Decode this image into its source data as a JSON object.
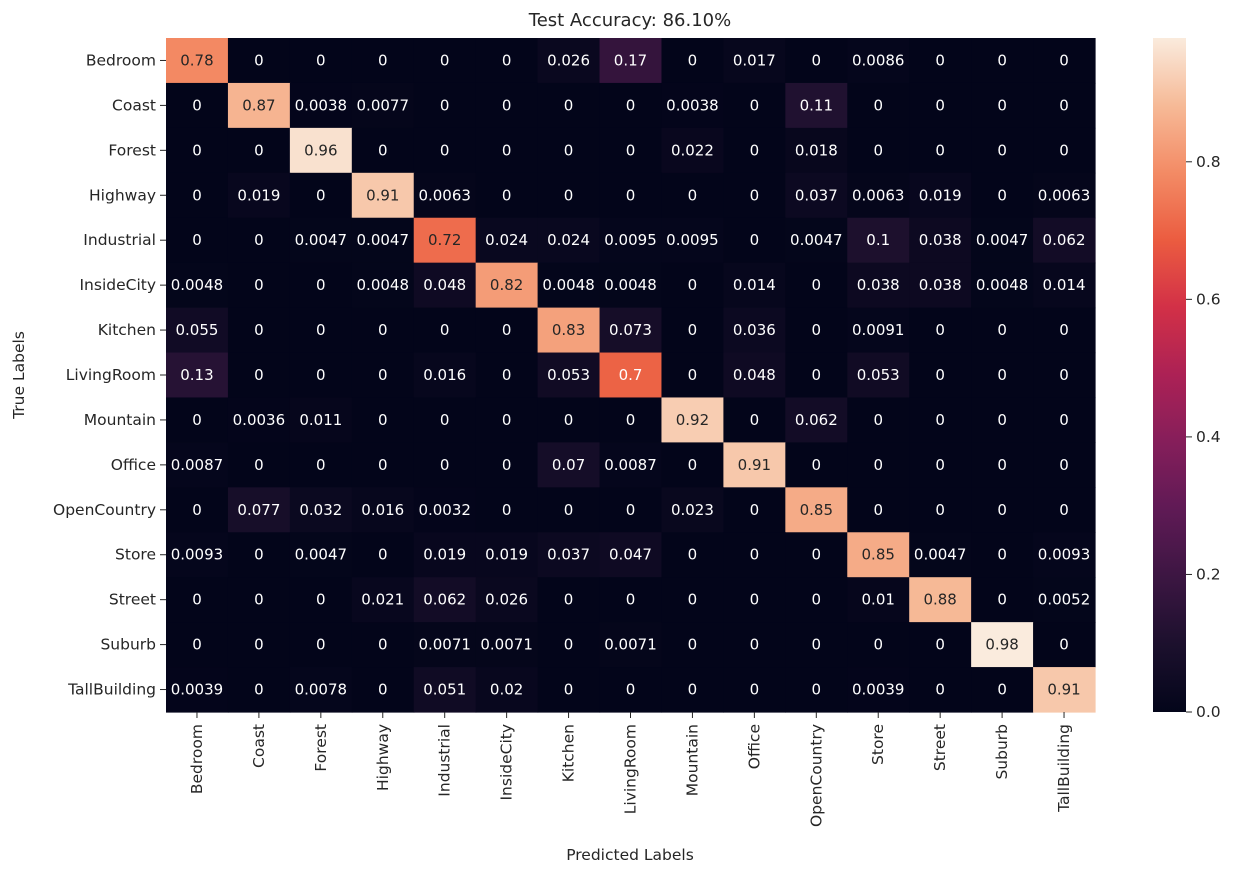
{
  "chart_data": {
    "type": "heatmap",
    "title": "Test Accuracy: 86.10%",
    "xlabel": "Predicted Labels",
    "ylabel": "True Labels",
    "x_categories": [
      "Bedroom",
      "Coast",
      "Forest",
      "Highway",
      "Industrial",
      "InsideCity",
      "Kitchen",
      "LivingRoom",
      "Mountain",
      "Office",
      "OpenCountry",
      "Store",
      "Street",
      "Suburb",
      "TallBuilding"
    ],
    "y_categories": [
      "Bedroom",
      "Coast",
      "Forest",
      "Highway",
      "Industrial",
      "InsideCity",
      "Kitchen",
      "LivingRoom",
      "Mountain",
      "Office",
      "OpenCountry",
      "Store",
      "Street",
      "Suburb",
      "TallBuilding"
    ],
    "values": [
      [
        "0.78",
        "0",
        "0",
        "0",
        "0",
        "0",
        "0.026",
        "0.17",
        "0",
        "0.017",
        "0",
        "0.0086",
        "0",
        "0",
        "0"
      ],
      [
        "0",
        "0.87",
        "0.0038",
        "0.0077",
        "0",
        "0",
        "0",
        "0",
        "0.0038",
        "0",
        "0.11",
        "0",
        "0",
        "0",
        "0"
      ],
      [
        "0",
        "0",
        "0.96",
        "0",
        "0",
        "0",
        "0",
        "0",
        "0.022",
        "0",
        "0.018",
        "0",
        "0",
        "0",
        "0"
      ],
      [
        "0",
        "0.019",
        "0",
        "0.91",
        "0.0063",
        "0",
        "0",
        "0",
        "0",
        "0",
        "0.037",
        "0.0063",
        "0.019",
        "0",
        "0.0063"
      ],
      [
        "0",
        "0",
        "0.0047",
        "0.0047",
        "0.72",
        "0.024",
        "0.024",
        "0.0095",
        "0.0095",
        "0",
        "0.0047",
        "0.1",
        "0.038",
        "0.0047",
        "0.062"
      ],
      [
        "0.0048",
        "0",
        "0",
        "0.0048",
        "0.048",
        "0.82",
        "0.0048",
        "0.0048",
        "0",
        "0.014",
        "0",
        "0.038",
        "0.038",
        "0.0048",
        "0.014"
      ],
      [
        "0.055",
        "0",
        "0",
        "0",
        "0",
        "0",
        "0.83",
        "0.073",
        "0",
        "0.036",
        "0",
        "0.0091",
        "0",
        "0",
        "0"
      ],
      [
        "0.13",
        "0",
        "0",
        "0",
        "0.016",
        "0",
        "0.053",
        "0.7",
        "0",
        "0.048",
        "0",
        "0.053",
        "0",
        "0",
        "0"
      ],
      [
        "0",
        "0.0036",
        "0.011",
        "0",
        "0",
        "0",
        "0",
        "0",
        "0.92",
        "0",
        "0.062",
        "0",
        "0",
        "0",
        "0"
      ],
      [
        "0.0087",
        "0",
        "0",
        "0",
        "0",
        "0",
        "0.07",
        "0.0087",
        "0",
        "0.91",
        "0",
        "0",
        "0",
        "0",
        "0"
      ],
      [
        "0",
        "0.077",
        "0.032",
        "0.016",
        "0.0032",
        "0",
        "0",
        "0",
        "0.023",
        "0",
        "0.85",
        "0",
        "0",
        "0",
        "0"
      ],
      [
        "0.0093",
        "0",
        "0.0047",
        "0",
        "0.019",
        "0.019",
        "0.037",
        "0.047",
        "0",
        "0",
        "0",
        "0.85",
        "0.0047",
        "0",
        "0.0093"
      ],
      [
        "0",
        "0",
        "0",
        "0.021",
        "0.062",
        "0.026",
        "0",
        "0",
        "0",
        "0",
        "0",
        "0.01",
        "0.88",
        "0",
        "0.0052"
      ],
      [
        "0",
        "0",
        "0",
        "0",
        "0.0071",
        "0.0071",
        "0",
        "0.0071",
        "0",
        "0",
        "0",
        "0",
        "0",
        "0.98",
        "0"
      ],
      [
        "0.0039",
        "0",
        "0.0078",
        "0",
        "0.051",
        "0.02",
        "0",
        "0",
        "0",
        "0",
        "0",
        "0.0039",
        "0",
        "0",
        "0.91"
      ]
    ],
    "colorbar": {
      "min": 0.0,
      "max": 0.98,
      "ticks": [
        "0.0",
        "0.2",
        "0.4",
        "0.6",
        "0.8"
      ],
      "colormap": "rocket"
    },
    "grid": false,
    "legend": "colorbar-right"
  }
}
